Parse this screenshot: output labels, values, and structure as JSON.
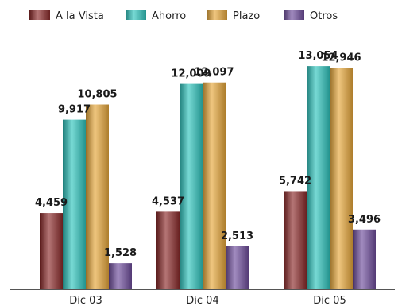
{
  "chart_data": {
    "type": "bar",
    "title": "",
    "xlabel": "",
    "ylabel": "",
    "categories": [
      "Dic 03",
      "Dic 04",
      "Dic 05"
    ],
    "ylim": [
      0,
      14500
    ],
    "grid": false,
    "legend_position": "top",
    "series": [
      {
        "name": "A la Vista",
        "values": [
          4459,
          4537,
          5742
        ],
        "labels": [
          "4,459",
          "4,537",
          "5,742"
        ],
        "color": "#8b2a2a"
      },
      {
        "name": "Ahorro",
        "values": [
          9917,
          12009,
          13054
        ],
        "labels": [
          "9,917",
          "12,009",
          "13,054"
        ],
        "color": "#2ec4bd"
      },
      {
        "name": "Plazo",
        "values": [
          10805,
          12097,
          12946
        ],
        "labels": [
          "10,805",
          "12,097",
          "12,946"
        ],
        "color": "#e6a73a"
      },
      {
        "name": "Otros",
        "values": [
          1528,
          2513,
          3496
        ],
        "labels": [
          "1,528",
          "2,513",
          "3,496"
        ],
        "color": "#6e4d9c"
      }
    ]
  }
}
